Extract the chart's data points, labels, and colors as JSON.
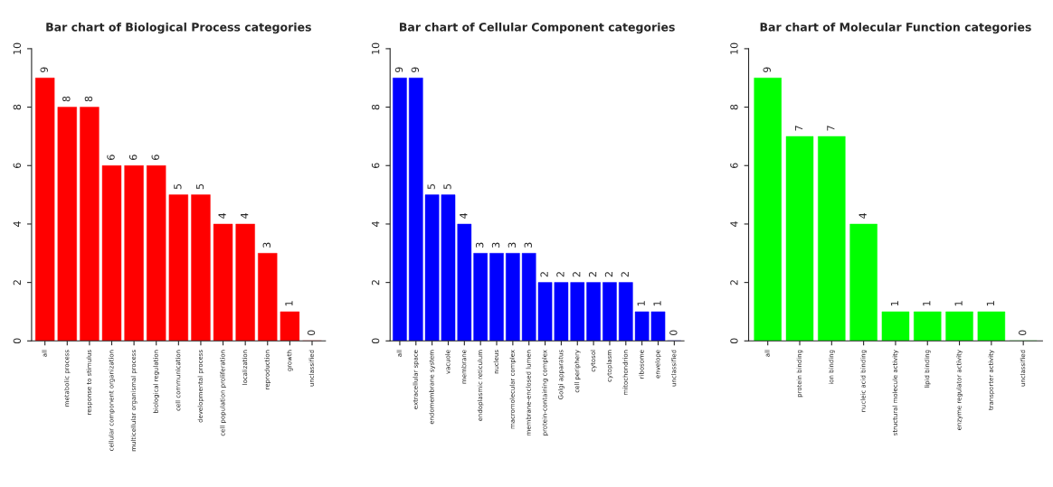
{
  "chart_data": [
    {
      "type": "bar",
      "title": "Bar chart of Biological Process categories",
      "categories": [
        "all",
        "metabolic process",
        "response to stimulus",
        "cellular component organization",
        "multicellular organismal process",
        "biological regulation",
        "cell communication",
        "developmental process",
        "cell population proliferation",
        "localization",
        "reproduction",
        "growth",
        "unclassified"
      ],
      "series": [
        {
          "color": "#ff0000",
          "values": [
            9,
            8,
            8,
            6,
            6,
            6,
            5,
            5,
            4,
            4,
            3,
            1,
            0
          ]
        }
      ],
      "ylim": [
        0,
        10
      ],
      "yticks": [
        0,
        2,
        4,
        6,
        8,
        10
      ],
      "data_labels": true
    },
    {
      "type": "bar",
      "title": "Bar chart of Cellular Component categories",
      "categories": [
        "all",
        "extracellular space",
        "endomembrane system",
        "vacuole",
        "membrane",
        "endoplasmic reticulum",
        "nucleus",
        "macromolecular complex",
        "membrane-enclosed lumen",
        "protein-containing complex",
        "Golgi apparatus",
        "cell periphery",
        "cytosol",
        "cytoplasm",
        "mitochondrion",
        "ribosome",
        "envelope",
        "unclassified"
      ],
      "series": [
        {
          "color": "#0000ff",
          "values": [
            9,
            9,
            5,
            5,
            4,
            3,
            3,
            3,
            3,
            2,
            2,
            2,
            2,
            2,
            2,
            1,
            1,
            0
          ]
        }
      ],
      "ylim": [
        0,
        10
      ],
      "yticks": [
        0,
        2,
        4,
        6,
        8,
        10
      ],
      "data_labels": true
    },
    {
      "type": "bar",
      "title": "Bar chart of Molecular Function categories",
      "categories": [
        "all",
        "protein binding",
        "ion binding",
        "nucleic acid binding",
        "structural molecule activity",
        "lipid binding",
        "enzyme regulator activity",
        "transporter activity",
        "unclassified"
      ],
      "series": [
        {
          "color": "#00ff00",
          "values": [
            9,
            7,
            7,
            4,
            1,
            1,
            1,
            1,
            0
          ]
        }
      ],
      "ylim": [
        0,
        10
      ],
      "yticks": [
        0,
        2,
        4,
        6,
        8,
        10
      ],
      "data_labels": true
    }
  ]
}
